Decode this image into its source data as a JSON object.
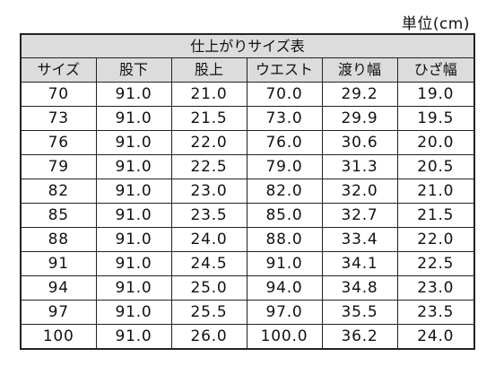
{
  "unit_label": "単位(cm)",
  "table": {
    "title": "仕上がりサイズ表",
    "headers": [
      "サイズ",
      "股下",
      "股上",
      "ウエスト",
      "渡り幅",
      "ひざ幅"
    ],
    "rows": [
      [
        "70",
        "91.0",
        "21.0",
        "70.0",
        "29.2",
        "19.0"
      ],
      [
        "73",
        "91.0",
        "21.5",
        "73.0",
        "29.9",
        "19.5"
      ],
      [
        "76",
        "91.0",
        "22.0",
        "76.0",
        "30.6",
        "20.0"
      ],
      [
        "79",
        "91.0",
        "22.5",
        "79.0",
        "31.3",
        "20.5"
      ],
      [
        "82",
        "91.0",
        "23.0",
        "82.0",
        "32.0",
        "21.0"
      ],
      [
        "85",
        "91.0",
        "23.5",
        "85.0",
        "32.7",
        "21.5"
      ],
      [
        "88",
        "91.0",
        "24.0",
        "88.0",
        "33.4",
        "22.0"
      ],
      [
        "91",
        "91.0",
        "24.5",
        "91.0",
        "34.1",
        "22.5"
      ],
      [
        "94",
        "91.0",
        "25.0",
        "94.0",
        "34.8",
        "23.0"
      ],
      [
        "97",
        "91.0",
        "25.5",
        "97.0",
        "35.5",
        "23.5"
      ],
      [
        "100",
        "91.0",
        "26.0",
        "100.0",
        "36.2",
        "24.0"
      ]
    ]
  }
}
